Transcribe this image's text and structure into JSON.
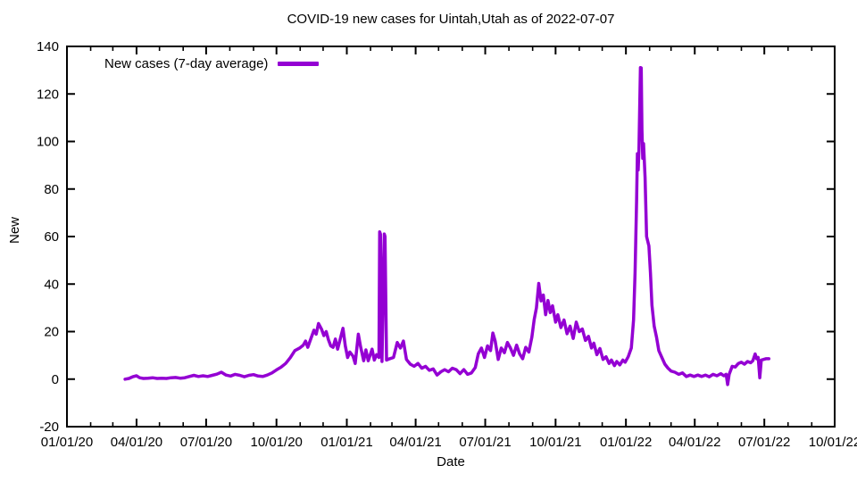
{
  "chart_data": {
    "type": "line",
    "title": "COVID-19 new cases for Uintah,Utah as of 2022-07-07",
    "xlabel": "Date",
    "ylabel": "New",
    "grid": false,
    "legend_position": "top-left-inside",
    "line_color": "#9400d3",
    "xlim": [
      "2020-01-01",
      "2022-10-01"
    ],
    "ylim": [
      -20,
      140
    ],
    "y_ticks": [
      -20,
      0,
      20,
      40,
      60,
      80,
      100,
      120,
      140
    ],
    "x_ticks": [
      {
        "date": "2020-01-01",
        "label": "01/01/20"
      },
      {
        "date": "2020-04-01",
        "label": "04/01/20"
      },
      {
        "date": "2020-07-01",
        "label": "07/01/20"
      },
      {
        "date": "2020-10-01",
        "label": "10/01/20"
      },
      {
        "date": "2021-01-01",
        "label": "01/01/21"
      },
      {
        "date": "2021-04-01",
        "label": "04/01/21"
      },
      {
        "date": "2021-07-01",
        "label": "07/01/21"
      },
      {
        "date": "2021-10-01",
        "label": "10/01/21"
      },
      {
        "date": "2022-01-01",
        "label": "01/01/22"
      },
      {
        "date": "2022-04-01",
        "label": "04/01/22"
      },
      {
        "date": "2022-07-01",
        "label": "07/01/22"
      },
      {
        "date": "2022-10-01",
        "label": "10/01/22"
      }
    ],
    "minor_x_ticks": "monthly",
    "series": [
      {
        "name": "New cases (7-day average)",
        "points": [
          [
            "2020-03-17",
            0
          ],
          [
            "2020-03-22",
            0.3
          ],
          [
            "2020-03-27",
            1
          ],
          [
            "2020-04-01",
            1.4
          ],
          [
            "2020-04-05",
            0.6
          ],
          [
            "2020-04-10",
            0.3
          ],
          [
            "2020-04-16",
            0.4
          ],
          [
            "2020-04-22",
            0.6
          ],
          [
            "2020-04-28",
            0.3
          ],
          [
            "2020-05-04",
            0.4
          ],
          [
            "2020-05-10",
            0.3
          ],
          [
            "2020-05-16",
            0.6
          ],
          [
            "2020-05-22",
            0.7
          ],
          [
            "2020-05-28",
            0.4
          ],
          [
            "2020-06-03",
            0.6
          ],
          [
            "2020-06-09",
            1.1
          ],
          [
            "2020-06-15",
            1.6
          ],
          [
            "2020-06-21",
            1.1
          ],
          [
            "2020-06-27",
            1.4
          ],
          [
            "2020-07-03",
            1.1
          ],
          [
            "2020-07-09",
            1.6
          ],
          [
            "2020-07-15",
            2.1
          ],
          [
            "2020-07-21",
            2.9
          ],
          [
            "2020-07-27",
            1.7
          ],
          [
            "2020-08-02",
            1.3
          ],
          [
            "2020-08-08",
            2
          ],
          [
            "2020-08-14",
            1.6
          ],
          [
            "2020-08-20",
            1
          ],
          [
            "2020-08-26",
            1.6
          ],
          [
            "2020-09-01",
            1.9
          ],
          [
            "2020-09-07",
            1.3
          ],
          [
            "2020-09-13",
            1.1
          ],
          [
            "2020-09-19",
            1.7
          ],
          [
            "2020-09-25",
            2.6
          ],
          [
            "2020-10-01",
            3.9
          ],
          [
            "2020-10-07",
            5
          ],
          [
            "2020-10-13",
            6.6
          ],
          [
            "2020-10-19",
            9
          ],
          [
            "2020-10-25",
            12
          ],
          [
            "2020-10-31",
            13
          ],
          [
            "2020-11-05",
            14.3
          ],
          [
            "2020-11-08",
            16
          ],
          [
            "2020-11-11",
            13.4
          ],
          [
            "2020-11-15",
            17
          ],
          [
            "2020-11-19",
            20.6
          ],
          [
            "2020-11-22",
            18.9
          ],
          [
            "2020-11-25",
            23.4
          ],
          [
            "2020-11-29",
            21
          ],
          [
            "2020-12-02",
            18.3
          ],
          [
            "2020-12-05",
            20
          ],
          [
            "2020-12-08",
            16.6
          ],
          [
            "2020-12-11",
            14
          ],
          [
            "2020-12-14",
            13.4
          ],
          [
            "2020-12-17",
            16.9
          ],
          [
            "2020-12-20",
            12.6
          ],
          [
            "2020-12-24",
            17.7
          ],
          [
            "2020-12-27",
            21.4
          ],
          [
            "2020-12-30",
            14
          ],
          [
            "2021-01-02",
            9.1
          ],
          [
            "2021-01-05",
            11.4
          ],
          [
            "2021-01-09",
            9.7
          ],
          [
            "2021-01-12",
            6.6
          ],
          [
            "2021-01-16",
            18.9
          ],
          [
            "2021-01-19",
            13.7
          ],
          [
            "2021-01-23",
            7.7
          ],
          [
            "2021-01-26",
            12.3
          ],
          [
            "2021-01-29",
            7.7
          ],
          [
            "2021-02-03",
            12.6
          ],
          [
            "2021-02-06",
            8
          ],
          [
            "2021-02-09",
            10.3
          ],
          [
            "2021-02-12",
            9.1
          ],
          [
            "2021-02-13",
            62
          ],
          [
            "2021-02-14",
            61
          ],
          [
            "2021-02-16",
            7.4
          ],
          [
            "2021-02-19",
            61.1
          ],
          [
            "2021-02-20",
            60
          ],
          [
            "2021-02-22",
            8
          ],
          [
            "2021-02-26",
            8.6
          ],
          [
            "2021-03-03",
            9.1
          ],
          [
            "2021-03-08",
            15.4
          ],
          [
            "2021-03-12",
            13.1
          ],
          [
            "2021-03-16",
            16
          ],
          [
            "2021-03-20",
            8.3
          ],
          [
            "2021-03-25",
            6.3
          ],
          [
            "2021-03-30",
            5.4
          ],
          [
            "2021-04-04",
            6.6
          ],
          [
            "2021-04-09",
            4.6
          ],
          [
            "2021-04-14",
            5.4
          ],
          [
            "2021-04-19",
            3.7
          ],
          [
            "2021-04-24",
            4.3
          ],
          [
            "2021-04-29",
            1.7
          ],
          [
            "2021-05-04",
            3.1
          ],
          [
            "2021-05-09",
            4
          ],
          [
            "2021-05-14",
            3.1
          ],
          [
            "2021-05-19",
            4.6
          ],
          [
            "2021-05-24",
            4
          ],
          [
            "2021-05-29",
            2.3
          ],
          [
            "2021-06-03",
            4
          ],
          [
            "2021-06-08",
            2
          ],
          [
            "2021-06-13",
            2.6
          ],
          [
            "2021-06-18",
            4.9
          ],
          [
            "2021-06-22",
            10.7
          ],
          [
            "2021-06-26",
            13.1
          ],
          [
            "2021-06-30",
            9.1
          ],
          [
            "2021-07-04",
            14
          ],
          [
            "2021-07-08",
            12
          ],
          [
            "2021-07-11",
            19.4
          ],
          [
            "2021-07-14",
            16
          ],
          [
            "2021-07-18",
            8.3
          ],
          [
            "2021-07-22",
            13.1
          ],
          [
            "2021-07-26",
            11.1
          ],
          [
            "2021-07-30",
            15.4
          ],
          [
            "2021-08-03",
            13.1
          ],
          [
            "2021-08-07",
            10
          ],
          [
            "2021-08-11",
            14.3
          ],
          [
            "2021-08-15",
            10.6
          ],
          [
            "2021-08-19",
            8.6
          ],
          [
            "2021-08-23",
            13.4
          ],
          [
            "2021-08-27",
            11.4
          ],
          [
            "2021-08-31",
            17.7
          ],
          [
            "2021-09-03",
            25.1
          ],
          [
            "2021-09-06",
            30
          ],
          [
            "2021-09-09",
            40.3
          ],
          [
            "2021-09-12",
            32.9
          ],
          [
            "2021-09-15",
            35.4
          ],
          [
            "2021-09-18",
            27.1
          ],
          [
            "2021-09-21",
            33.1
          ],
          [
            "2021-09-24",
            28
          ],
          [
            "2021-09-27",
            30.9
          ],
          [
            "2021-10-01",
            24
          ],
          [
            "2021-10-04",
            27.1
          ],
          [
            "2021-10-08",
            21.7
          ],
          [
            "2021-10-12",
            24.9
          ],
          [
            "2021-10-16",
            19.1
          ],
          [
            "2021-10-20",
            22.3
          ],
          [
            "2021-10-24",
            17.1
          ],
          [
            "2021-10-28",
            24
          ],
          [
            "2021-11-01",
            20
          ],
          [
            "2021-11-05",
            21.1
          ],
          [
            "2021-11-09",
            16.3
          ],
          [
            "2021-11-13",
            18
          ],
          [
            "2021-11-17",
            13.1
          ],
          [
            "2021-11-20",
            15.1
          ],
          [
            "2021-11-24",
            10.3
          ],
          [
            "2021-11-28",
            12.9
          ],
          [
            "2021-12-02",
            8.3
          ],
          [
            "2021-12-06",
            9.4
          ],
          [
            "2021-12-10",
            6.6
          ],
          [
            "2021-12-13",
            8
          ],
          [
            "2021-12-17",
            5.7
          ],
          [
            "2021-12-20",
            7.4
          ],
          [
            "2021-12-24",
            6
          ],
          [
            "2021-12-28",
            8
          ],
          [
            "2021-12-31",
            7.1
          ],
          [
            "2022-01-04",
            9.4
          ],
          [
            "2022-01-08",
            13.1
          ],
          [
            "2022-01-11",
            24.9
          ],
          [
            "2022-01-13",
            44.9
          ],
          [
            "2022-01-15",
            74.9
          ],
          [
            "2022-01-16",
            94.9
          ],
          [
            "2022-01-17",
            88
          ],
          [
            "2022-01-18",
            96
          ],
          [
            "2022-01-20",
            131.1
          ],
          [
            "2022-01-21",
            131
          ],
          [
            "2022-01-22",
            104.9
          ],
          [
            "2022-01-23",
            92.9
          ],
          [
            "2022-01-24",
            99.1
          ],
          [
            "2022-01-26",
            84.9
          ],
          [
            "2022-01-28",
            60
          ],
          [
            "2022-01-31",
            56
          ],
          [
            "2022-02-02",
            44.9
          ],
          [
            "2022-02-04",
            31.1
          ],
          [
            "2022-02-07",
            22.3
          ],
          [
            "2022-02-10",
            17.7
          ],
          [
            "2022-02-13",
            12
          ],
          [
            "2022-02-17",
            9.1
          ],
          [
            "2022-02-21",
            6.3
          ],
          [
            "2022-02-25",
            4.6
          ],
          [
            "2022-03-01",
            3.4
          ],
          [
            "2022-03-06",
            2.9
          ],
          [
            "2022-03-11",
            2
          ],
          [
            "2022-03-16",
            2.6
          ],
          [
            "2022-03-21",
            1.1
          ],
          [
            "2022-03-26",
            1.7
          ],
          [
            "2022-03-31",
            1.1
          ],
          [
            "2022-04-05",
            1.7
          ],
          [
            "2022-04-10",
            1.1
          ],
          [
            "2022-04-15",
            1.7
          ],
          [
            "2022-04-20",
            1
          ],
          [
            "2022-04-25",
            2
          ],
          [
            "2022-04-30",
            1.4
          ],
          [
            "2022-05-05",
            2.3
          ],
          [
            "2022-05-09",
            1.4
          ],
          [
            "2022-05-12",
            2
          ],
          [
            "2022-05-14",
            -2.3
          ],
          [
            "2022-05-16",
            2
          ],
          [
            "2022-05-20",
            5.4
          ],
          [
            "2022-05-24",
            5.1
          ],
          [
            "2022-05-28",
            6.6
          ],
          [
            "2022-06-01",
            7.1
          ],
          [
            "2022-06-05",
            6.3
          ],
          [
            "2022-06-09",
            7.4
          ],
          [
            "2022-06-13",
            6.9
          ],
          [
            "2022-06-16",
            7.7
          ],
          [
            "2022-06-19",
            10.6
          ],
          [
            "2022-06-21",
            8.6
          ],
          [
            "2022-06-23",
            9.1
          ],
          [
            "2022-06-25",
            0.6
          ],
          [
            "2022-06-27",
            8
          ],
          [
            "2022-06-30",
            8.3
          ],
          [
            "2022-07-03",
            8.6
          ],
          [
            "2022-07-07",
            8.6
          ]
        ]
      }
    ]
  }
}
